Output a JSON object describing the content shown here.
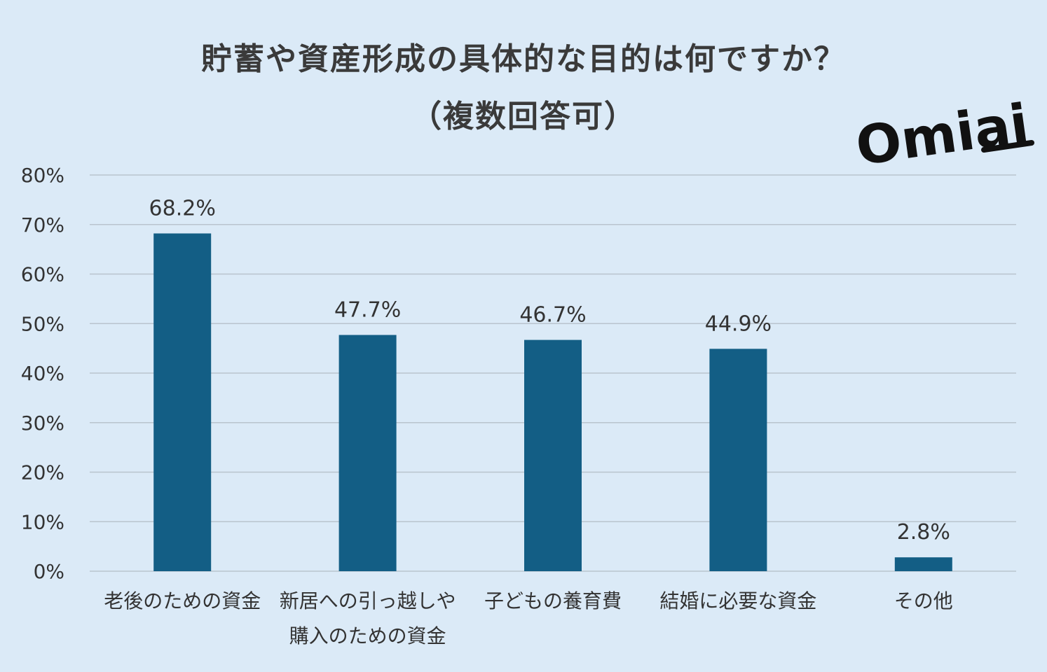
{
  "logo_text": "Omiai",
  "chart_data": {
    "type": "bar",
    "title": "貯蓄や資産形成の具体的な目的は何ですか？",
    "subtitle": "（複数回答可）",
    "categories": [
      [
        "老後のための資金"
      ],
      [
        "新居への引っ越しや",
        "購入のための資金"
      ],
      [
        "子どもの養育費"
      ],
      [
        "結婚に必要な資金"
      ],
      [
        "その他"
      ]
    ],
    "values": [
      68.2,
      47.7,
      46.7,
      44.9,
      2.8
    ],
    "value_labels": [
      "68.2%",
      "47.7%",
      "46.7%",
      "44.9%",
      "2.8%"
    ],
    "ylim": [
      0,
      80
    ],
    "yticks": [
      "0%",
      "10%",
      "20%",
      "30%",
      "40%",
      "50%",
      "60%",
      "70%",
      "80%"
    ],
    "grid": true,
    "bar_color": "#135e85",
    "grid_color": "#b9c4ce"
  }
}
